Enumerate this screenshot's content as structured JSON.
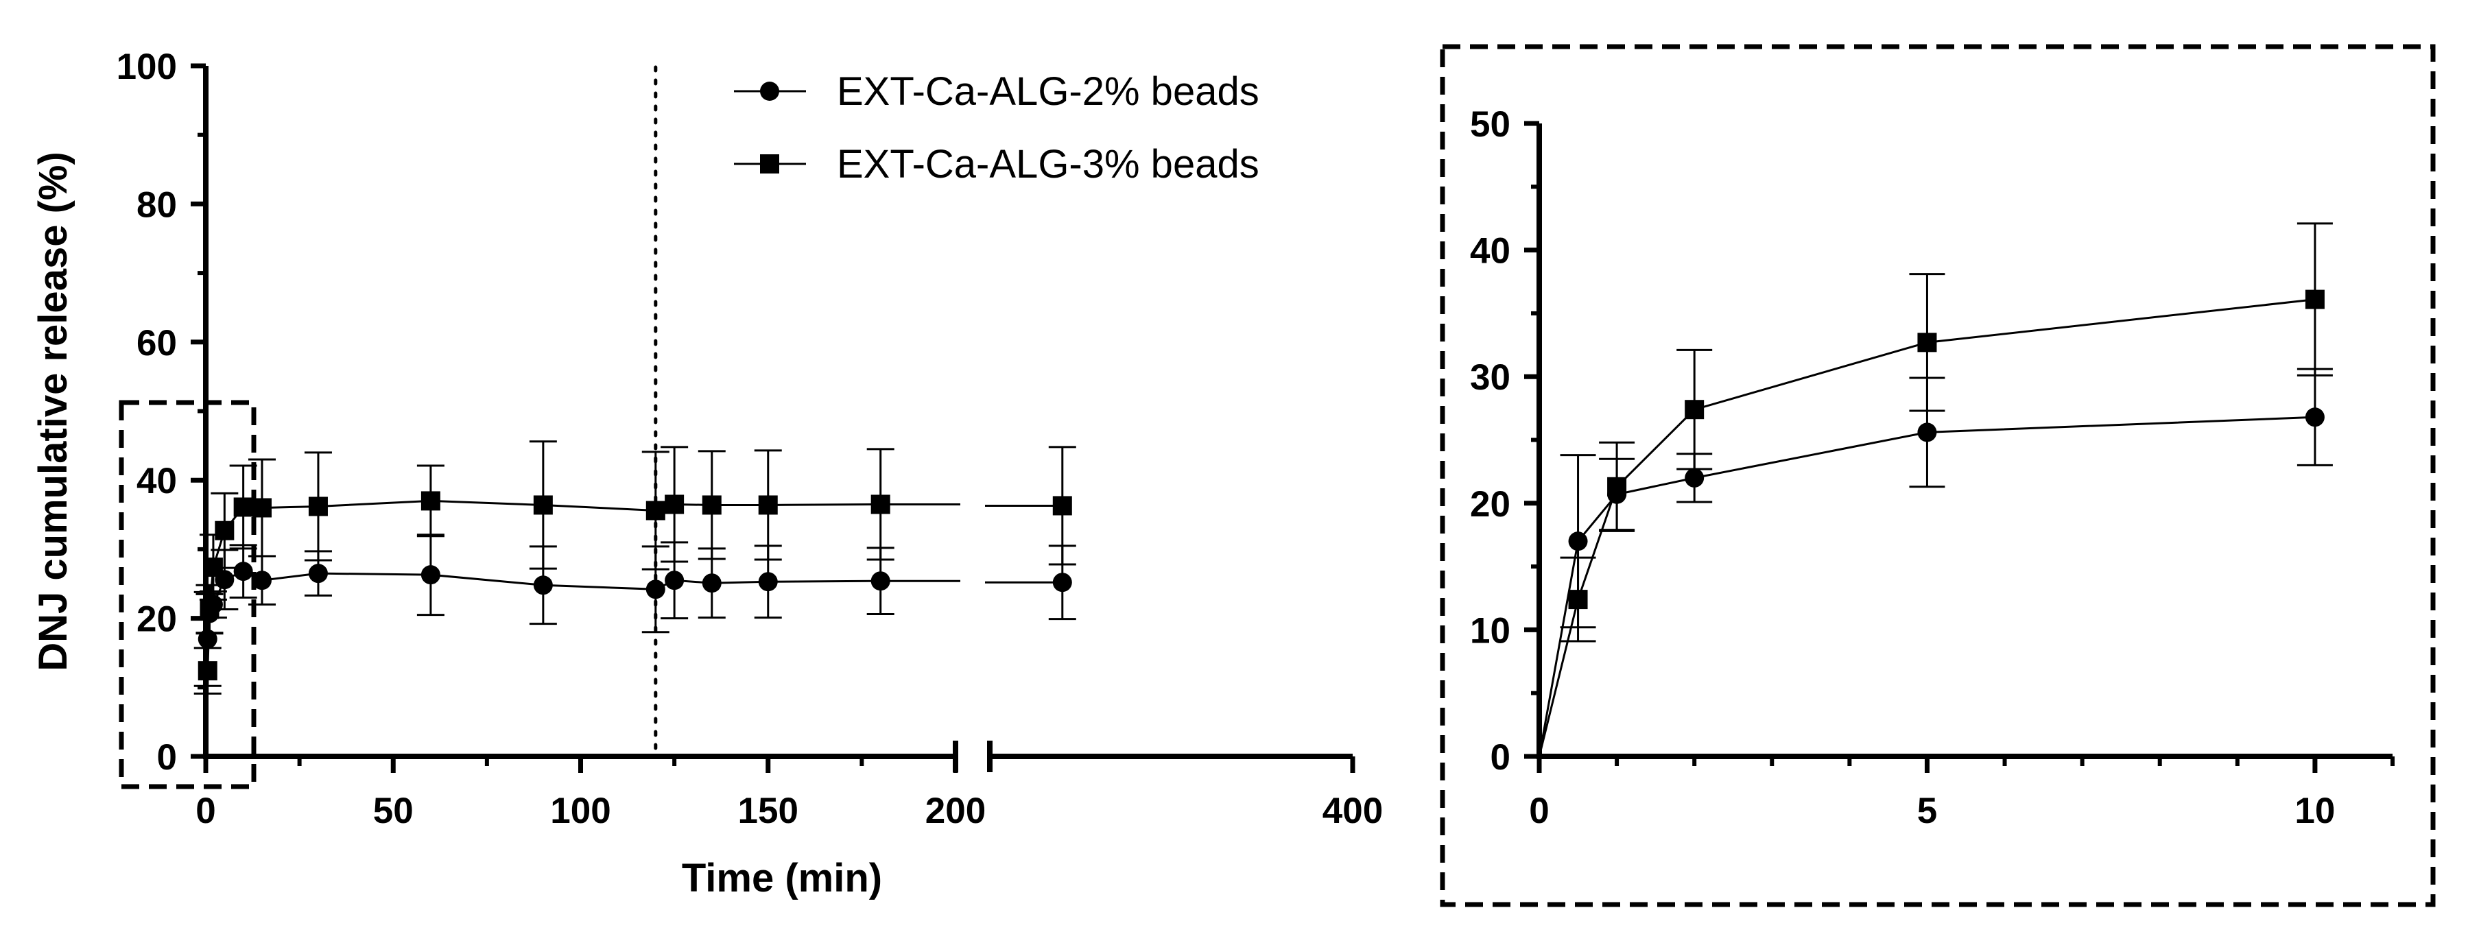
{
  "chart_data": [
    {
      "type": "line",
      "title": "",
      "xlabel": "Time (min)",
      "ylabel": "DNJ cumulative release (%)",
      "ylim": [
        0,
        100
      ],
      "yticks": [
        "0",
        "20",
        "40",
        "60",
        "80",
        "100"
      ],
      "xlim": [
        0,
        400
      ],
      "x_axis_break": [
        200,
        350
      ],
      "xticks": [
        "0",
        "50",
        "100",
        "150",
        "200",
        "400"
      ],
      "reference_line_x": 120,
      "legend": {
        "position": "top-center",
        "entries": [
          "EXT-Ca-ALG-2% beads",
          "EXT-Ca-ALG-3% beads"
        ]
      },
      "series": [
        {
          "name": "EXT-Ca-ALG-2% beads",
          "marker": "circle",
          "x": [
            0,
            0.5,
            1,
            2,
            5,
            10,
            15,
            30,
            60,
            90,
            120,
            125,
            135,
            150,
            180,
            360
          ],
          "values": [
            0,
            17,
            20.7,
            22,
            25.6,
            26.8,
            25.5,
            26.5,
            26.3,
            24.8,
            24.2,
            25.5,
            25.1,
            25.3,
            25.4,
            25.2
          ],
          "error": [
            0,
            6.8,
            2.8,
            1.9,
            4.3,
            3.8,
            3.5,
            3.2,
            5.8,
            5.6,
            6.2,
            5.5,
            5.0,
            5.2,
            4.8,
            5.3
          ]
        },
        {
          "name": "EXT-Ca-ALG-3% beads",
          "marker": "square",
          "x": [
            0,
            0.5,
            1,
            2,
            5,
            10,
            15,
            30,
            60,
            90,
            120,
            125,
            135,
            150,
            180,
            360
          ],
          "values": [
            0,
            12.4,
            21.3,
            27.4,
            32.7,
            36.1,
            36,
            36.2,
            37,
            36.4,
            35.6,
            36.5,
            36.4,
            36.4,
            36.5,
            36.3
          ],
          "error": [
            0,
            3.3,
            3.5,
            4.7,
            5.4,
            6.0,
            7.0,
            7.8,
            5.1,
            9.2,
            8.5,
            8.3,
            7.8,
            7.9,
            8.0,
            8.5
          ]
        }
      ]
    },
    {
      "type": "line",
      "title": "",
      "xlabel": "",
      "ylabel": "",
      "ylim": [
        0,
        50
      ],
      "yticks": [
        "0",
        "10",
        "20",
        "30",
        "40",
        "50"
      ],
      "xlim": [
        0,
        11
      ],
      "xticks": [
        "0",
        "5",
        "10"
      ],
      "series": [
        {
          "name": "EXT-Ca-ALG-2% beads",
          "marker": "circle",
          "x": [
            0,
            0.5,
            1,
            2,
            5,
            10
          ],
          "values": [
            0,
            17,
            20.7,
            22,
            25.6,
            26.8
          ],
          "error": [
            0,
            6.8,
            2.8,
            1.9,
            4.3,
            3.8
          ]
        },
        {
          "name": "EXT-Ca-ALG-3% beads",
          "marker": "square",
          "x": [
            0,
            0.5,
            1,
            2,
            5,
            10
          ],
          "values": [
            0,
            12.4,
            21.3,
            27.4,
            32.7,
            36.1
          ],
          "error": [
            0,
            3.3,
            3.5,
            4.7,
            5.4,
            6.0
          ]
        }
      ]
    }
  ]
}
